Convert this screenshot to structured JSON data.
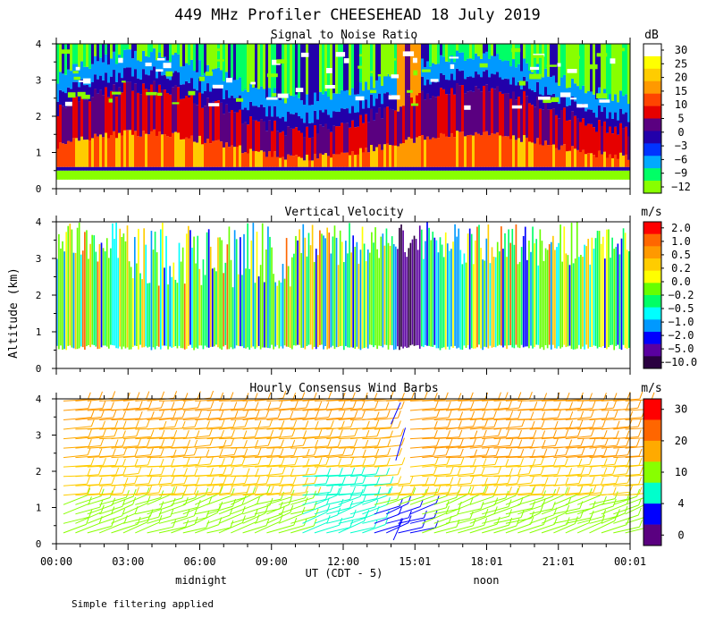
{
  "title": "449 MHz Profiler CHEESEHEAD 18 July 2019",
  "footnote": "Simple filtering applied",
  "x_axis": {
    "label": "UT  (CDT - 5)",
    "ticks": [
      "00:00",
      "03:00",
      "06:00",
      "09:00",
      "12:00",
      "15:01",
      "18:01",
      "21:01",
      "00:01"
    ],
    "local_labels": [
      "midnight",
      "noon"
    ]
  },
  "y_axis_label": "Altitude (km)",
  "chart_data": [
    {
      "type": "heatmap",
      "title": "Signal to Noise Ratio",
      "units": "dB",
      "xlim_hours": [
        0,
        24
      ],
      "ylim_km": [
        0,
        4
      ],
      "y_ticks": [
        "0",
        "1",
        "2",
        "3",
        "4"
      ],
      "colorbar_labels": [
        "30",
        "25",
        "20",
        "15",
        "10",
        "5",
        "0",
        "−3",
        "−6",
        "−9",
        "−12"
      ],
      "colorbar_colors": [
        "#ffffff",
        "#ffff00",
        "#ffcc00",
        "#ff9900",
        "#ff4400",
        "#e60000",
        "#5a0080",
        "#2200aa",
        "#0033ff",
        "#00aaff",
        "#00ff66",
        "#88ff00"
      ]
    },
    {
      "type": "heatmap",
      "title": "Vertical Velocity",
      "units": "m/s",
      "xlim_hours": [
        0,
        24
      ],
      "ylim_km": [
        0,
        4
      ],
      "y_ticks": [
        "0",
        "1",
        "2",
        "3",
        "4"
      ],
      "colorbar_labels": [
        "2.0",
        "1.0",
        "0.5",
        "0.2",
        "0.0",
        "−0.2",
        "−0.5",
        "−1.0",
        "−2.0",
        "−5.0",
        "−10.0"
      ],
      "colorbar_colors": [
        "#ff0000",
        "#ff6600",
        "#ff9900",
        "#ffcc00",
        "#ffff00",
        "#66ff00",
        "#00ff66",
        "#00ffff",
        "#0099ff",
        "#0000ff",
        "#5a00a0",
        "#2a0040"
      ]
    },
    {
      "type": "wind-barbs",
      "title": "Hourly Consensus Wind Barbs",
      "units": "m/s",
      "xlim_hours": [
        0,
        24
      ],
      "ylim_km": [
        0,
        4
      ],
      "y_ticks": [
        "0",
        "1",
        "2",
        "3",
        "4"
      ],
      "colorbar_labels": [
        "30",
        "20",
        "10",
        "4",
        "0"
      ],
      "colorbar_colors": [
        "#ff0000",
        "#ff6600",
        "#ffaa00",
        "#88ff00",
        "#00ffcc",
        "#0000ff",
        "#5a0080"
      ]
    }
  ]
}
